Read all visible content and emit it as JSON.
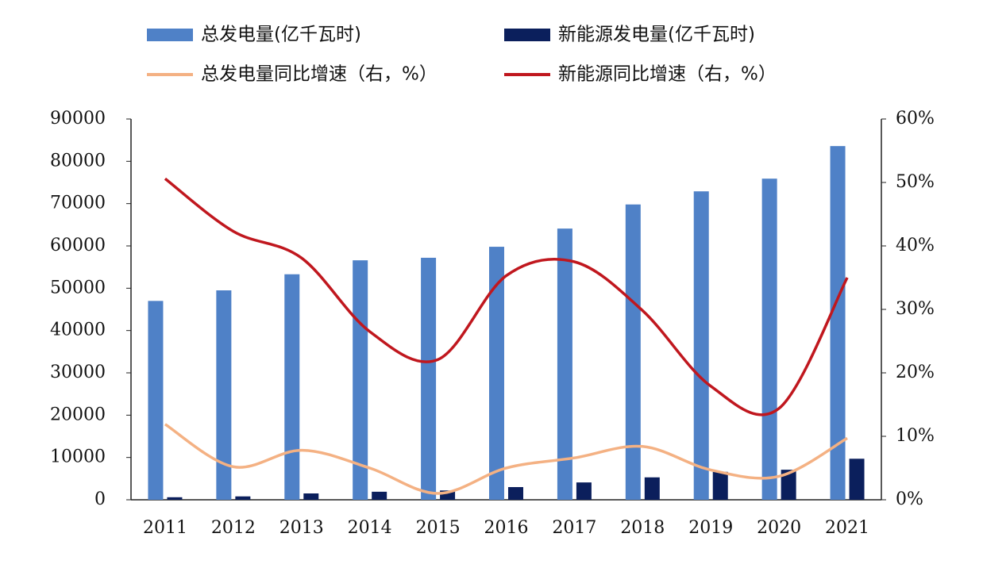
{
  "chart_data": {
    "type": "bar",
    "categories": [
      "2011",
      "2012",
      "2013",
      "2014",
      "2015",
      "2016",
      "2017",
      "2018",
      "2019",
      "2020",
      "2021"
    ],
    "series": [
      {
        "name": "总发电量(亿千瓦时)",
        "type": "bar",
        "color": "#4f81c7",
        "values": [
          47000,
          49500,
          53300,
          56600,
          57200,
          59800,
          64100,
          69800,
          72900,
          75900,
          83600
        ]
      },
      {
        "name": "新能源发电量(亿千瓦时)",
        "type": "bar",
        "color": "#0b1f5c",
        "values": [
          600,
          800,
          1500,
          1900,
          2200,
          3000,
          4100,
          5300,
          6600,
          7100,
          9700
        ]
      },
      {
        "name": "总发电量同比增速（右，%）",
        "type": "line",
        "axis": "y2",
        "color": "#f4b183",
        "values": [
          11.9,
          5.2,
          7.8,
          5.0,
          1.0,
          5.0,
          6.6,
          8.4,
          4.7,
          3.7,
          9.7
        ]
      },
      {
        "name": "新能源同比增速（右，%）",
        "type": "line",
        "axis": "y2",
        "color": "#c0171e",
        "values": [
          50.6,
          42.3,
          38.1,
          26.5,
          22.1,
          35.3,
          37.5,
          29.8,
          17.9,
          14.4,
          35.0
        ]
      }
    ],
    "ylim": [
      0,
      90000
    ],
    "yticks": [
      0,
      10000,
      20000,
      30000,
      40000,
      50000,
      60000,
      70000,
      80000,
      90000
    ],
    "y2lim": [
      0,
      60
    ],
    "y2ticks": [
      {
        "value": 0,
        "label": "0%"
      },
      {
        "value": 10,
        "label": "10%"
      },
      {
        "value": 20,
        "label": "20%"
      },
      {
        "value": 30,
        "label": "30%"
      },
      {
        "value": 40,
        "label": "40%"
      },
      {
        "value": 50,
        "label": "50%"
      },
      {
        "value": 60,
        "label": "60%"
      }
    ]
  }
}
